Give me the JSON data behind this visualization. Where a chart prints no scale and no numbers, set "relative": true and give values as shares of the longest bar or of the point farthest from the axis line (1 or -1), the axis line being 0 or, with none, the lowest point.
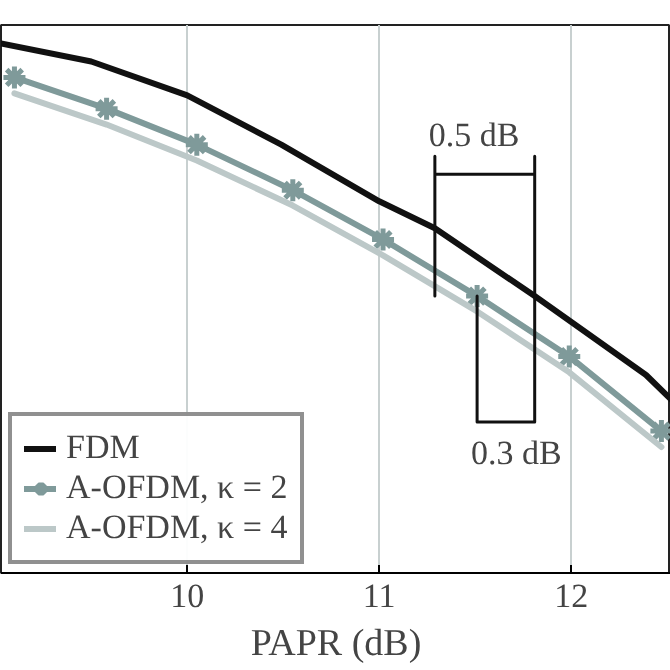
{
  "chart_data": {
    "type": "line",
    "relative": true,
    "xlabel": "PAPR (dB)",
    "xlim": [
      9.03,
      12.52
    ],
    "xticks": [
      10,
      11,
      12
    ],
    "grid": "x",
    "legend": "bottom left",
    "line_style": "solid",
    "series": [
      {
        "name": "FDM",
        "color": "#111111",
        "marker": "none",
        "x": [
          9.03,
          9.5,
          10,
          10.49,
          11,
          11.29,
          11.81,
          12.39,
          12.52
        ],
        "values": [
          1.0,
          0.966,
          0.902,
          0.809,
          0.702,
          0.651,
          0.523,
          0.374,
          0.328
        ]
      },
      {
        "name": "A-OFDM, κ = 2",
        "color": "#7f9a9a",
        "marker": "cross",
        "x": [
          9.1,
          9.58,
          10.05,
          10.55,
          11.02,
          11.51,
          11.99,
          12.47
        ],
        "values": [
          0.936,
          0.877,
          0.809,
          0.723,
          0.63,
          0.523,
          0.409,
          0.268
        ]
      },
      {
        "name": "A-OFDM, κ = 4",
        "color": "#bcc8c8",
        "marker": "none",
        "x": [
          9.1,
          9.58,
          10.05,
          10.55,
          11.02,
          11.51,
          11.99,
          12.47
        ],
        "values": [
          0.906,
          0.847,
          0.779,
          0.694,
          0.6,
          0.494,
          0.379,
          0.238
        ]
      },
      {
        "type": "line",
        "color": "#111111",
        "marker": "none",
        "x": [
          11.29,
          11.29,
          null,
          11.81,
          11.81,
          null,
          11.51,
          11.51,
          null,
          11.29,
          11.81,
          null,
          11.51,
          11.81
        ],
        "values": [
          0.523,
          0.787,
          null,
          0.787,
          0.285,
          null,
          0.523,
          0.285,
          null,
          0.753,
          0.753,
          null,
          0.285,
          0.285
        ]
      }
    ],
    "annotations": [
      {
        "text": "0.5 dB",
        "x": 11.29,
        "y": 0.753
      },
      {
        "text": "0.3 dB",
        "x": 11.51,
        "y": 0.285
      }
    ]
  }
}
